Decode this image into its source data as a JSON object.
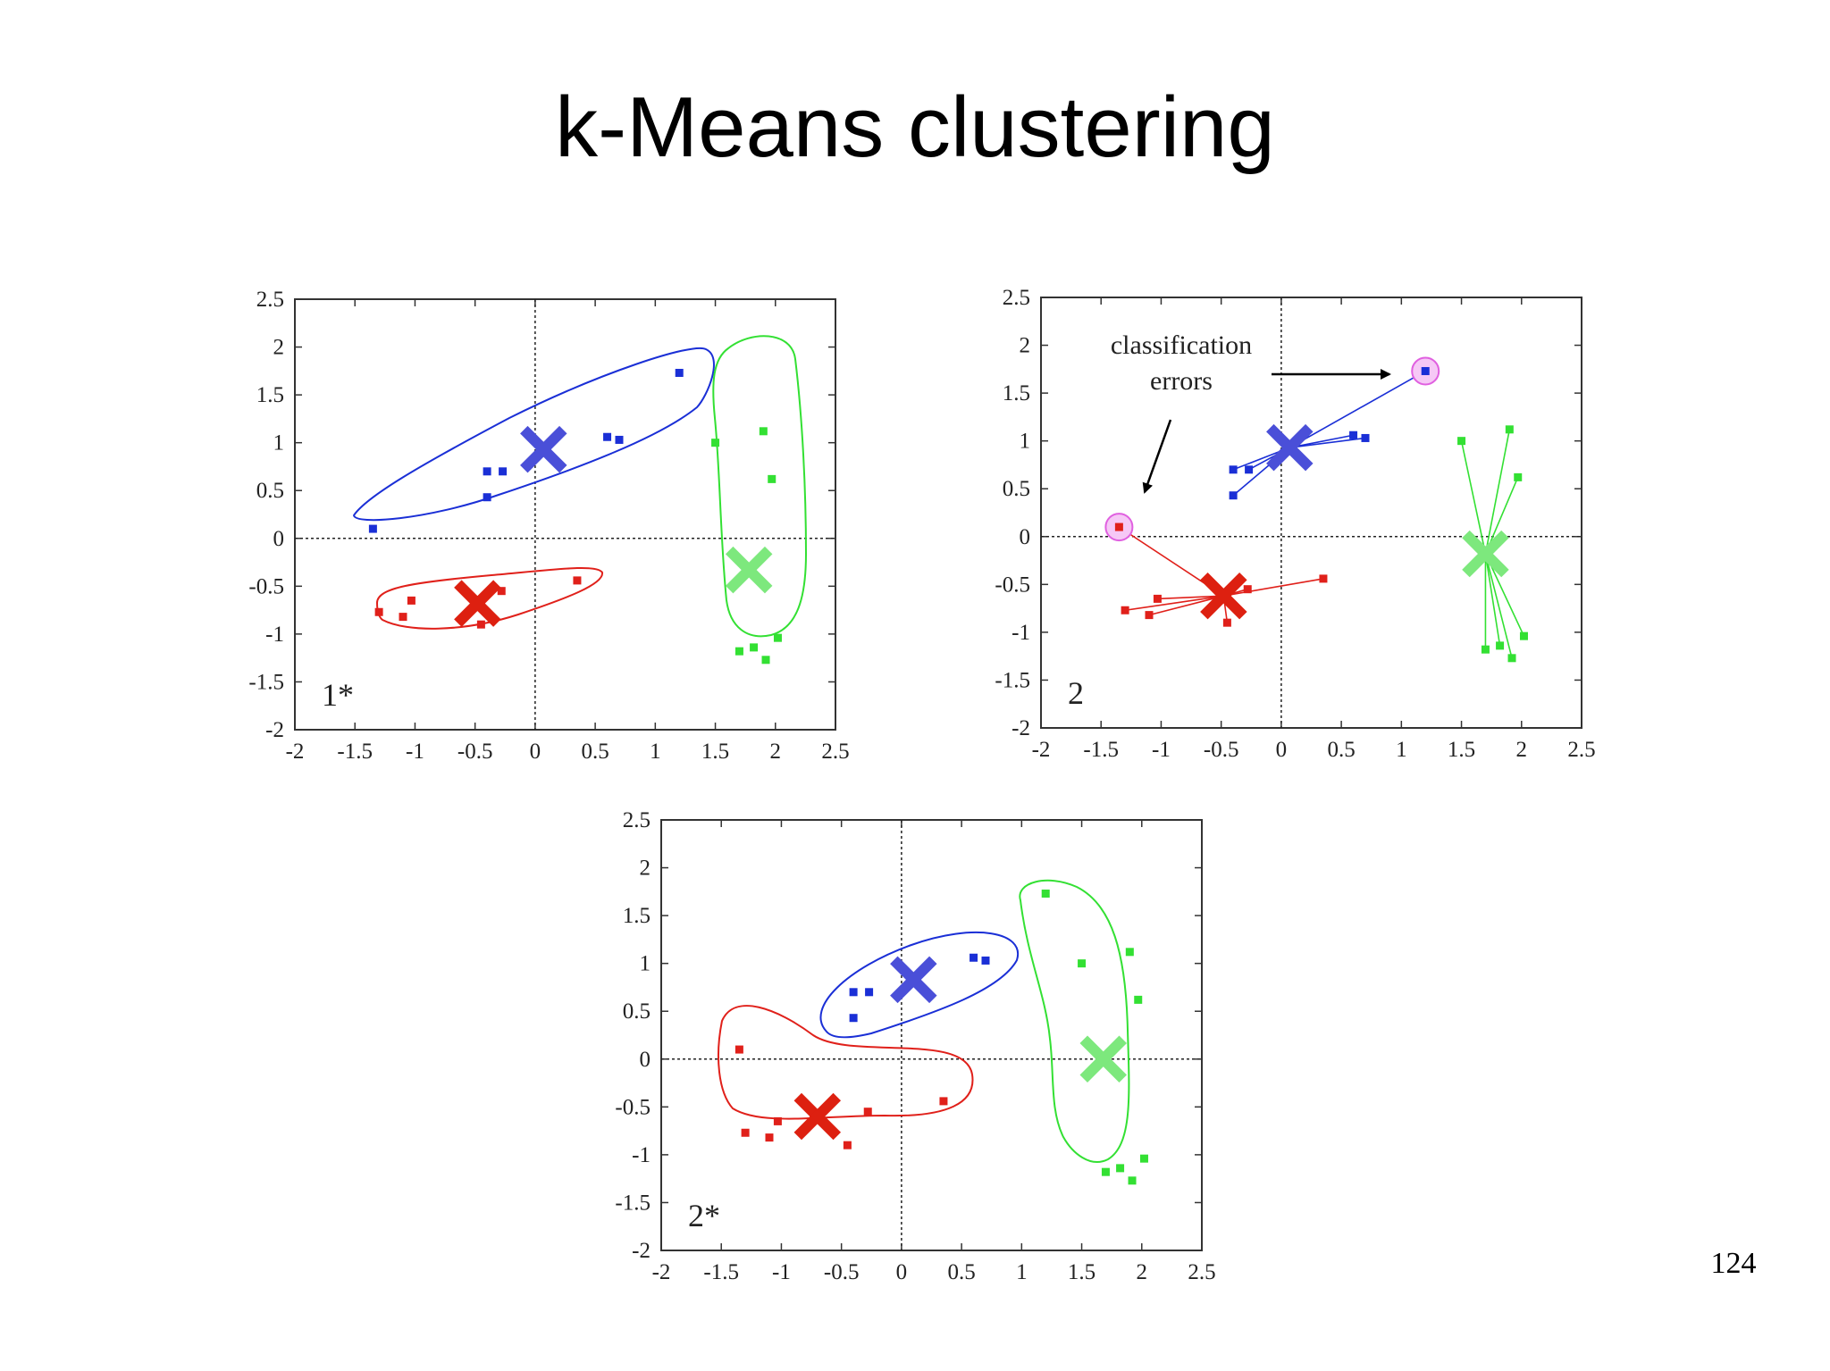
{
  "slide": {
    "title": "k-Means clustering",
    "page_number": "124"
  },
  "colors": {
    "blue": "#1a2fd6",
    "red": "#e0201a",
    "green": "#33e033",
    "blue_centroid": "#4a4fd8",
    "red_centroid": "#dd2010",
    "green_centroid": "#7de87d",
    "error_ring": "#e060e0"
  },
  "chart_data": [
    {
      "type": "scatter",
      "panel_label": "1*",
      "xlim": [
        -2,
        2.5
      ],
      "ylim": [
        -2,
        2.5
      ],
      "xticks": [
        "-2",
        "-1.5",
        "-1",
        "-0.5",
        "0",
        "0.5",
        "1",
        "1.5",
        "2",
        "2.5"
      ],
      "yticks": [
        "2.5",
        "2",
        "1.5",
        "1",
        "0.5",
        "0",
        "-0.5",
        "-1",
        "-1.5",
        "-2"
      ],
      "grid": "dashed axes at x=0 and y=0",
      "series": [
        {
          "color_key": "blue",
          "points": [
            [
              -1.35,
              0.1
            ],
            [
              -0.4,
              0.7
            ],
            [
              -0.27,
              0.7
            ],
            [
              -0.4,
              0.43
            ],
            [
              0.6,
              1.06
            ],
            [
              0.7,
              1.03
            ],
            [
              1.2,
              1.73
            ]
          ]
        },
        {
          "color_key": "red",
          "points": [
            [
              -1.3,
              -0.77
            ],
            [
              -1.03,
              -0.65
            ],
            [
              -1.1,
              -0.82
            ],
            [
              -0.45,
              -0.9
            ],
            [
              -0.28,
              -0.55
            ],
            [
              0.35,
              -0.44
            ]
          ]
        },
        {
          "color_key": "green",
          "points": [
            [
              1.5,
              1.0
            ],
            [
              1.9,
              1.12
            ],
            [
              1.97,
              0.62
            ],
            [
              1.7,
              -1.18
            ],
            [
              1.82,
              -1.14
            ],
            [
              1.92,
              -1.27
            ],
            [
              2.02,
              -1.04
            ]
          ]
        }
      ],
      "centroids": [
        {
          "color_key": "blue_centroid",
          "x": 0.07,
          "y": 0.93
        },
        {
          "color_key": "red_centroid",
          "x": -0.48,
          "y": -0.68
        },
        {
          "color_key": "green_centroid",
          "x": 1.78,
          "y": -0.33
        }
      ]
    },
    {
      "type": "scatter",
      "panel_label": "2",
      "xlim": [
        -2,
        2.5
      ],
      "ylim": [
        -2,
        2.5
      ],
      "xticks": [
        "-2",
        "-1.5",
        "-1",
        "-0.5",
        "0",
        "0.5",
        "1",
        "1.5",
        "2",
        "2.5"
      ],
      "yticks": [
        "2.5",
        "2",
        "1.5",
        "1",
        "0.5",
        "0",
        "-0.5",
        "-1",
        "-1.5",
        "-2"
      ],
      "grid": "dashed axes at x=0 and y=0",
      "series": [
        {
          "color_key": "blue",
          "points": [
            [
              -0.4,
              0.7
            ],
            [
              -0.27,
              0.7
            ],
            [
              -0.4,
              0.43
            ],
            [
              0.6,
              1.06
            ],
            [
              0.7,
              1.03
            ],
            [
              1.2,
              1.73
            ]
          ]
        },
        {
          "color_key": "red",
          "points": [
            [
              -1.35,
              0.1
            ],
            [
              -1.3,
              -0.77
            ],
            [
              -1.03,
              -0.65
            ],
            [
              -1.1,
              -0.82
            ],
            [
              -0.45,
              -0.9
            ],
            [
              -0.28,
              -0.55
            ],
            [
              0.35,
              -0.44
            ]
          ]
        },
        {
          "color_key": "green",
          "points": [
            [
              1.5,
              1.0
            ],
            [
              1.9,
              1.12
            ],
            [
              1.97,
              0.62
            ],
            [
              1.7,
              -1.18
            ],
            [
              1.82,
              -1.14
            ],
            [
              1.92,
              -1.27
            ],
            [
              2.02,
              -1.04
            ]
          ]
        }
      ],
      "centroids": [
        {
          "color_key": "blue_centroid",
          "x": 0.07,
          "y": 0.93
        },
        {
          "color_key": "red_centroid",
          "x": -0.48,
          "y": -0.62
        },
        {
          "color_key": "green_centroid",
          "x": 1.7,
          "y": -0.18
        }
      ],
      "misclassified": [
        [
          -1.35,
          0.1
        ],
        [
          1.2,
          1.73
        ]
      ],
      "annotation": {
        "lines": [
          "classification",
          "errors"
        ]
      }
    },
    {
      "type": "scatter",
      "panel_label": "2*",
      "xlim": [
        -2,
        2.5
      ],
      "ylim": [
        -2,
        2.5
      ],
      "xticks": [
        "-2",
        "-1.5",
        "-1",
        "-0.5",
        "0",
        "0.5",
        "1",
        "1.5",
        "2",
        "2.5"
      ],
      "yticks": [
        "2.5",
        "2",
        "1.5",
        "1",
        "0.5",
        "0",
        "-0.5",
        "-1",
        "-1.5",
        "-2"
      ],
      "grid": "dashed axes at x=0 and y=0",
      "series": [
        {
          "color_key": "blue",
          "points": [
            [
              -0.4,
              0.7
            ],
            [
              -0.27,
              0.7
            ],
            [
              -0.4,
              0.43
            ],
            [
              0.6,
              1.06
            ],
            [
              0.7,
              1.03
            ]
          ]
        },
        {
          "color_key": "red",
          "points": [
            [
              -1.35,
              0.1
            ],
            [
              -1.3,
              -0.77
            ],
            [
              -1.03,
              -0.65
            ],
            [
              -1.1,
              -0.82
            ],
            [
              -0.45,
              -0.9
            ],
            [
              -0.28,
              -0.55
            ],
            [
              0.35,
              -0.44
            ]
          ]
        },
        {
          "color_key": "green",
          "points": [
            [
              1.2,
              1.73
            ],
            [
              1.5,
              1.0
            ],
            [
              1.9,
              1.12
            ],
            [
              1.97,
              0.62
            ],
            [
              1.7,
              -1.18
            ],
            [
              1.82,
              -1.14
            ],
            [
              1.92,
              -1.27
            ],
            [
              2.02,
              -1.04
            ]
          ]
        }
      ],
      "centroids": [
        {
          "color_key": "blue_centroid",
          "x": 0.1,
          "y": 0.83
        },
        {
          "color_key": "red_centroid",
          "x": -0.7,
          "y": -0.6
        },
        {
          "color_key": "green_centroid",
          "x": 1.68,
          "y": 0.0
        }
      ]
    }
  ]
}
